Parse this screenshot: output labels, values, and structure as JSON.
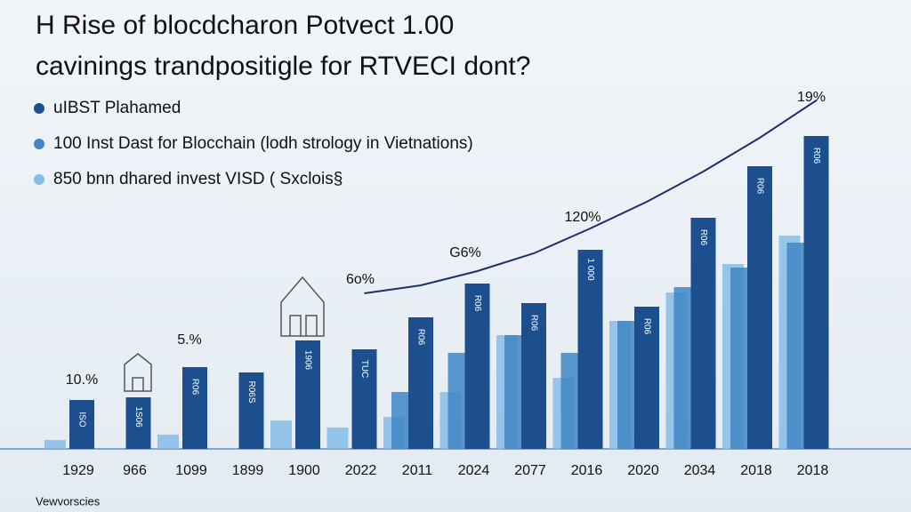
{
  "chart_data": {
    "type": "bar",
    "title": [
      "H Rise of blocdcharon Potvect 1.00",
      "cavinings trandpositigle for RTVECI dont?"
    ],
    "categories": [
      "1929",
      "966",
      "1099",
      "1899",
      "1900",
      "2022",
      "2011",
      "2024",
      "2077",
      "2016",
      "2020",
      "2034",
      "2018",
      "2018"
    ],
    "series": [
      {
        "name": "uIBST Plahamed",
        "color": "#1d4f8f",
        "values": [
          13.75,
          14.5,
          23,
          21.5,
          30.5,
          28,
          37,
          46.5,
          41,
          56,
          40,
          65,
          79.5,
          88
        ]
      },
      {
        "name": "100 Inst Dast for Blocchain (lodh strology in Vietnations)",
        "color": "#3f86c6",
        "values": [
          0,
          0,
          0,
          0,
          0,
          0,
          16,
          27,
          32,
          27,
          36,
          45.5,
          51,
          58
        ]
      },
      {
        "name": "850 bnn dhared invest VISD ( Sxclois§",
        "color": "#86bde6",
        "values": [
          2.5,
          0,
          4,
          0,
          8,
          6,
          9,
          16,
          32,
          20,
          36,
          44,
          52,
          60
        ]
      }
    ],
    "trend": {
      "color": "#1e2f6e",
      "values": [
        null,
        null,
        null,
        null,
        null,
        43.75,
        46,
        50,
        55,
        62,
        69.5,
        78,
        87.5,
        98
      ]
    },
    "bar_labels": [
      "ISO",
      "1S06",
      "R06",
      "R06S",
      "1906",
      "TUC",
      "R06",
      "R06",
      "R06",
      "1 000",
      "R06",
      "R06",
      "R06",
      "R06"
    ],
    "annotations": [
      "10.%",
      "5.%",
      "6o%",
      "G6%",
      "120%",
      "19%"
    ],
    "ylim": [
      0,
      100
    ],
    "footer": "Vewvorscies"
  }
}
